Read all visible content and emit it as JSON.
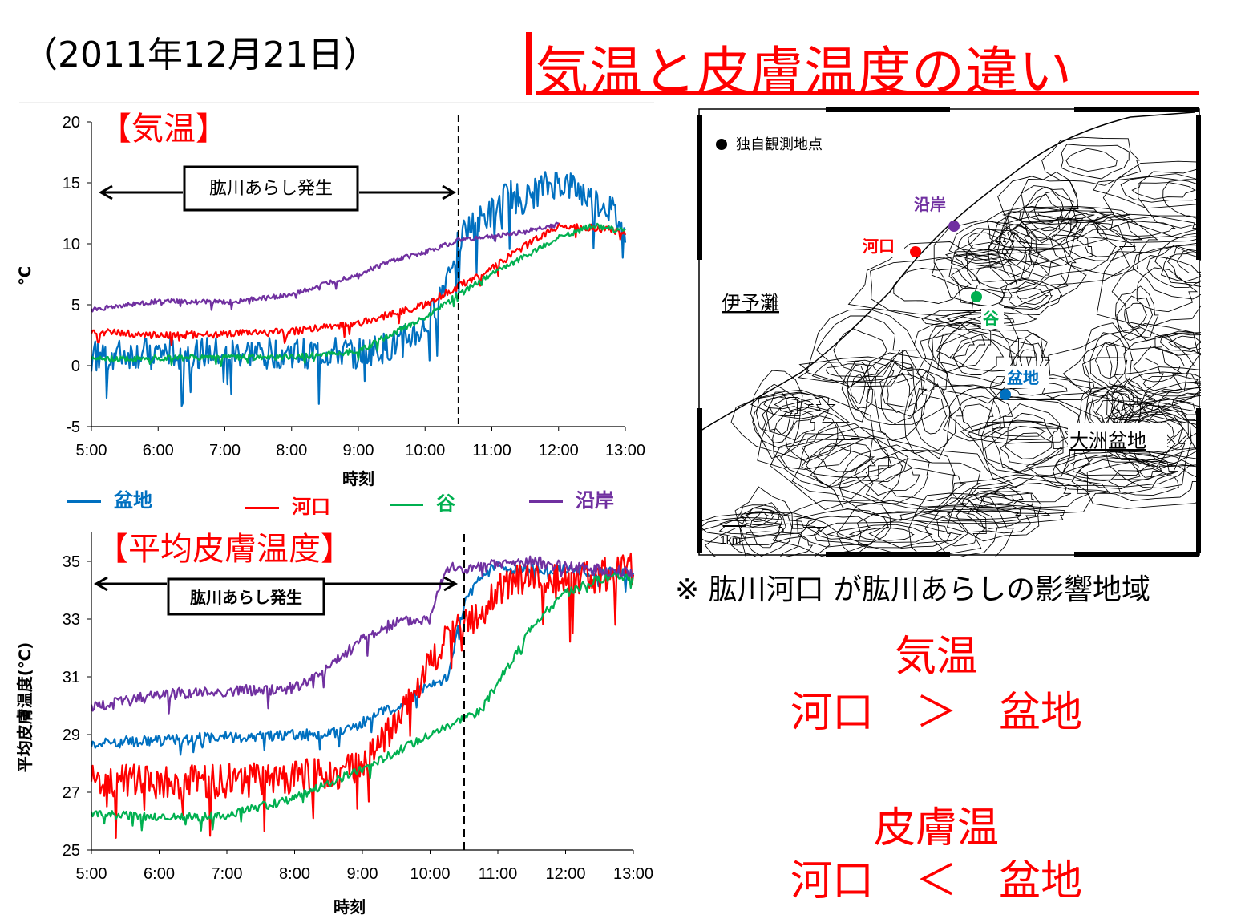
{
  "header": {
    "date": "（2011年12月21日）",
    "title": "気温と皮膚温度の違い"
  },
  "colors": {
    "title": "#ff0000",
    "bonchi": "#0070c0",
    "kakou": "#ff0000",
    "tani": "#00b050",
    "engan": "#7030a0"
  },
  "legend": [
    {
      "name": "盆地",
      "color": "#0070c0"
    },
    {
      "name": "河口",
      "color": "#ff0000"
    },
    {
      "name": "谷",
      "color": "#00b050"
    },
    {
      "name": "沿岸",
      "color": "#7030a0"
    }
  ],
  "chart_data": [
    {
      "type": "line",
      "title": "【気温】",
      "xlabel": "時刻",
      "ylabel": "℃",
      "x_ticks": [
        "5:00",
        "6:00",
        "7:00",
        "8:00",
        "9:00",
        "10:00",
        "11:00",
        "12:00",
        "13:00"
      ],
      "y_ticks": [
        "20",
        "15",
        "10",
        "5",
        "0",
        "-5"
      ],
      "ylim": [
        -5,
        20
      ],
      "xlim": [
        5,
        13
      ],
      "annotation": "肱川あらし発生",
      "event_line_x": "10:30",
      "series": [
        {
          "name": "盆地",
          "color": "#0070c0",
          "x": [
            5,
            6,
            7,
            8,
            9,
            9.5,
            10,
            10.25,
            10.5,
            10.75,
            11,
            11.25,
            11.5,
            11.75,
            12,
            12.25,
            12.5,
            12.75,
            13
          ],
          "y": [
            0.8,
            1.0,
            1.0,
            1.0,
            1.0,
            1.5,
            3.0,
            6.0,
            10.5,
            11.5,
            12.5,
            14.0,
            13.5,
            14.5,
            15.0,
            14.5,
            13.5,
            13.0,
            11.0
          ],
          "noise": 1.3
        },
        {
          "name": "河口",
          "color": "#ff0000",
          "x": [
            5,
            6,
            7,
            8,
            9,
            10,
            10.5,
            11,
            11.5,
            12,
            12.5,
            13
          ],
          "y": [
            2.8,
            2.5,
            2.6,
            2.8,
            3.5,
            5.0,
            6.5,
            8.0,
            9.8,
            11.5,
            11.3,
            11.0
          ],
          "noise": 0.3
        },
        {
          "name": "谷",
          "color": "#00b050",
          "x": [
            5,
            6,
            7,
            8,
            9,
            10,
            10.5,
            11,
            11.5,
            12,
            12.5,
            13
          ],
          "y": [
            0.5,
            0.6,
            0.7,
            0.7,
            1.2,
            4.0,
            5.8,
            7.5,
            9.0,
            10.5,
            11.5,
            11.0
          ],
          "noise": 0.25
        },
        {
          "name": "沿岸",
          "color": "#7030a0",
          "x": [
            5,
            6,
            7,
            8,
            8.5,
            9,
            9.5,
            10,
            10.5,
            11,
            11.5,
            11.75,
            12
          ],
          "y": [
            4.6,
            5.3,
            5.2,
            5.8,
            6.7,
            7.5,
            8.6,
            9.3,
            10.3,
            10.6,
            11.0,
            11.3,
            11.6
          ],
          "noise": 0.2
        }
      ]
    },
    {
      "type": "line",
      "title": "【平均皮膚温度】",
      "xlabel": "時刻",
      "ylabel": "平均皮膚温度(℃)",
      "x_ticks": [
        "5:00",
        "6:00",
        "7:00",
        "8:00",
        "9:00",
        "10:00",
        "11:00",
        "12:00",
        "13:00"
      ],
      "y_ticks": [
        "35",
        "33",
        "31",
        "29",
        "27",
        "25"
      ],
      "ylim": [
        25,
        36
      ],
      "xlim": [
        5,
        13
      ],
      "annotation": "肱川あらし発生",
      "event_line_x": "10:30",
      "series": [
        {
          "name": "盆地",
          "color": "#0070c0",
          "x": [
            5,
            6,
            7,
            8,
            8.5,
            9,
            9.5,
            10,
            10.25,
            10.5,
            10.75,
            11,
            11.5,
            12,
            12.5,
            13
          ],
          "y": [
            28.7,
            28.8,
            28.9,
            29.0,
            29.0,
            29.4,
            30.0,
            30.7,
            31.0,
            33.5,
            34.5,
            34.8,
            34.7,
            34.7,
            34.6,
            34.6
          ],
          "noise": 0.2
        },
        {
          "name": "河口",
          "color": "#ff0000",
          "x": [
            5,
            6,
            7,
            8,
            9,
            9.5,
            10,
            10.5,
            10.75,
            11,
            11.5,
            12,
            12.5,
            13
          ],
          "y": [
            27.5,
            27.3,
            27.4,
            27.5,
            27.8,
            29.5,
            31.5,
            33.0,
            33.0,
            34.0,
            34.6,
            34.2,
            34.5,
            34.7
          ],
          "noise": 0.6
        },
        {
          "name": "谷",
          "color": "#00b050",
          "x": [
            5,
            6,
            7,
            8,
            9,
            10,
            10.5,
            10.75,
            11,
            11.25,
            11.5,
            12,
            12.5,
            13
          ],
          "y": [
            26.3,
            26.1,
            26.2,
            26.8,
            27.8,
            29.0,
            29.6,
            29.8,
            30.8,
            31.7,
            32.8,
            33.9,
            34.4,
            34.5
          ],
          "noise": 0.15
        },
        {
          "name": "沿岸",
          "color": "#7030a0",
          "x": [
            5,
            6,
            7,
            8,
            8.5,
            9,
            9.5,
            10,
            10.1,
            10.25,
            10.5,
            11,
            11.5,
            12,
            12.5,
            13
          ],
          "y": [
            29.9,
            30.4,
            30.5,
            30.6,
            31.3,
            32.3,
            32.9,
            33.0,
            34.0,
            34.8,
            34.7,
            34.9,
            35.0,
            34.8,
            34.7,
            34.6
          ],
          "noise": 0.2
        }
      ]
    }
  ],
  "map": {
    "legend": "独自観測地点",
    "sea_label": "伊予灘",
    "basin_label": "大洲盆地",
    "scale": "1km",
    "points": [
      {
        "name": "沿岸",
        "color": "#7030a0"
      },
      {
        "name": "河口",
        "color": "#ff0000"
      },
      {
        "name": "谷",
        "color": "#00b050"
      },
      {
        "name": "盆地",
        "color": "#0070c0"
      }
    ]
  },
  "notes": {
    "impact": "※ 肱川河口 が肱川あらしの影響地域",
    "air_title": "気温",
    "air_compare": "河口　＞　盆地",
    "skin_title": "皮膚温",
    "skin_compare": "河口　＜　盆地"
  }
}
